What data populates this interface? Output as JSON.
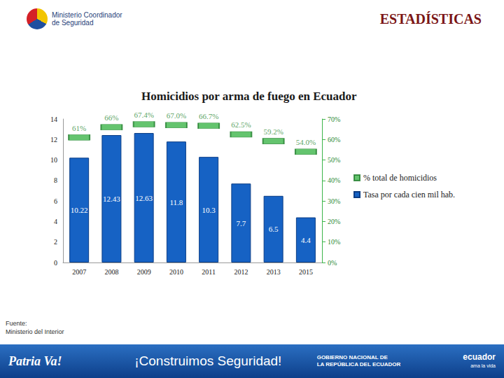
{
  "chart_data": {
    "type": "bar",
    "title": "Homicidios por arma de fuego en Ecuador",
    "categories": [
      "2007",
      "2008",
      "2009",
      "2010",
      "2011",
      "2012",
      "2013",
      "2015"
    ],
    "series": [
      {
        "name": "% total de homicidios",
        "type": "scatter",
        "axis": "y2",
        "color": "#3db54a",
        "marker": "rect",
        "values": [
          61,
          66,
          67.4,
          67.0,
          66.7,
          62.5,
          59.2,
          54.0
        ],
        "value_labels": [
          "61%",
          "66%",
          "67.4%",
          "67.0%",
          "66.7%",
          "62.5%",
          "59.2%",
          "54.0%"
        ]
      },
      {
        "name": "Tasa por cada cien mil hab.",
        "type": "bar",
        "color": "#1662c4",
        "values": [
          10.22,
          12.43,
          12.63,
          11.8,
          10.3,
          7.7,
          6.5,
          4.4
        ]
      }
    ],
    "ylim": [
      0,
      14
    ],
    "yticks": [
      0,
      2,
      4,
      6,
      8,
      10,
      12,
      14
    ],
    "y2lim": [
      0,
      70
    ],
    "y2ticks": [
      {
        "value": 0,
        "label": "0%"
      },
      {
        "value": 10,
        "label": "10%"
      },
      {
        "value": 20,
        "label": "20%"
      },
      {
        "value": 30,
        "label": "30%"
      },
      {
        "value": 40,
        "label": "40%"
      },
      {
        "value": 50,
        "label": "50%"
      },
      {
        "value": 60,
        "label": "60%"
      },
      {
        "value": 70,
        "label": "70%"
      }
    ],
    "grid": false,
    "legend": "right",
    "data_labels": true
  },
  "header": "ESTADÍSTICAS",
  "logo": [
    "Ministerio Coordinador",
    "de Seguridad"
  ],
  "source": [
    "Fuente:",
    "Ministerio del Interior"
  ],
  "footer": {
    "left": "Patria Va!",
    "center": "¡Construimos Seguridad!",
    "government": [
      "GOBIERNO NACIONAL DE",
      "LA REPÚBLICA DEL ECUADOR"
    ],
    "brand": [
      "ecuador",
      "ama la vida"
    ]
  }
}
